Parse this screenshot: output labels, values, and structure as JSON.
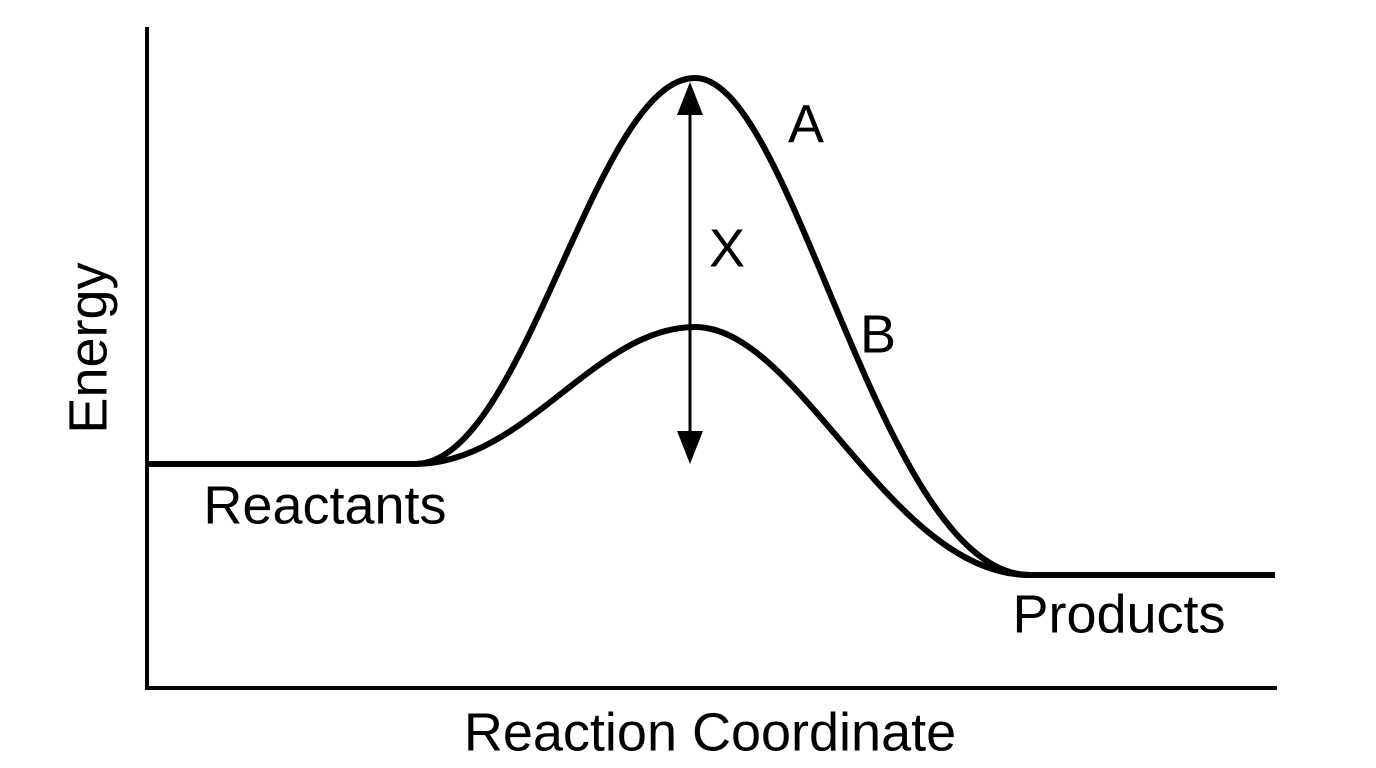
{
  "diagram": {
    "x_axis_label": "Reaction Coordinate",
    "y_axis_label": "Energy",
    "curves": [
      {
        "label": "A"
      },
      {
        "label": "B"
      }
    ],
    "arrow_label": "X",
    "start_label": "Reactants",
    "end_label": "Products"
  }
}
